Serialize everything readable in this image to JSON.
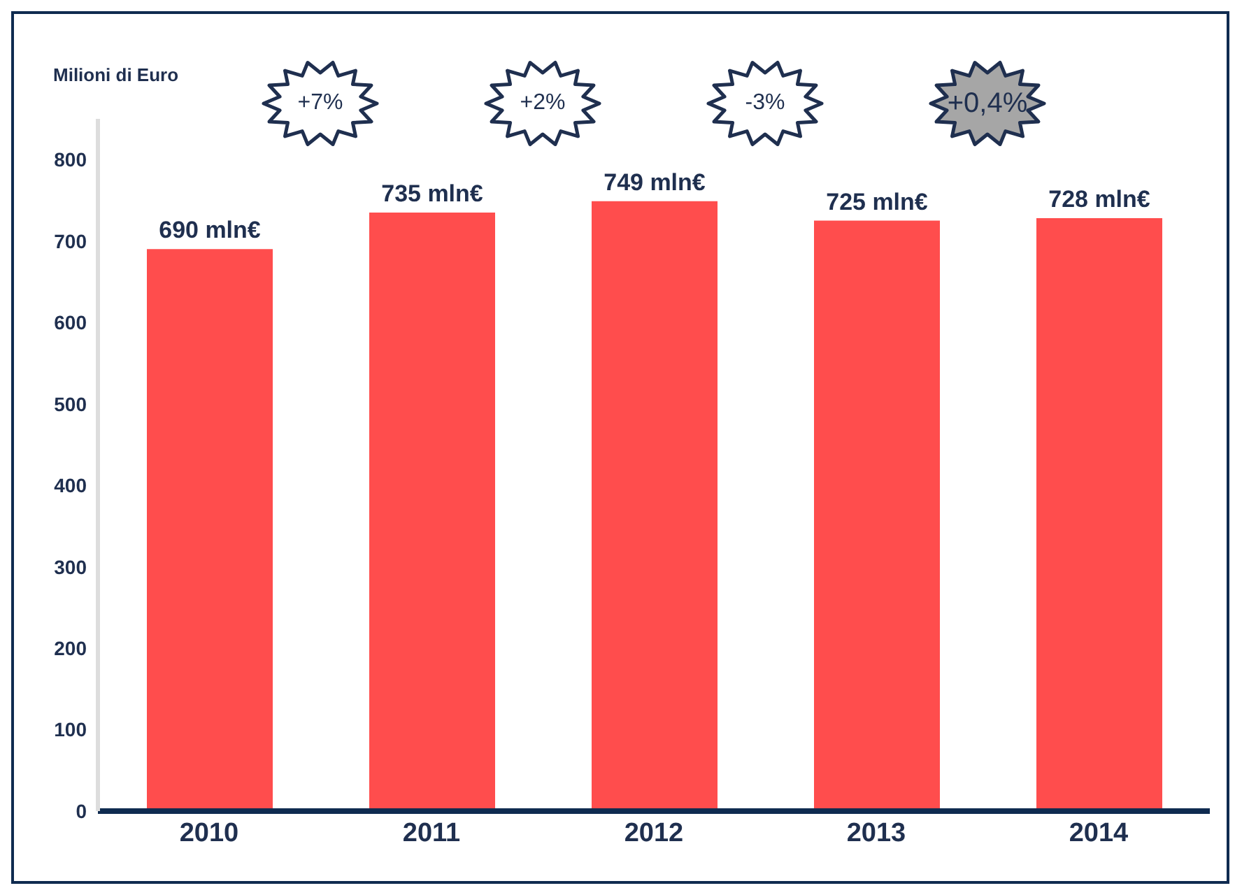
{
  "chart_data": {
    "type": "bar",
    "ylabel": "Milioni di Euro",
    "categories": [
      "2010",
      "2011",
      "2012",
      "2013",
      "2014"
    ],
    "values": [
      690,
      735,
      749,
      725,
      728
    ],
    "color": "#ff4d4d",
    "value_labels": [
      "690 mln€",
      "735 mln€",
      "749 mln€",
      "725 mln€",
      "728 mln€"
    ],
    "ylim": [
      0,
      850
    ],
    "yticks": [
      0,
      100,
      200,
      300,
      400,
      500,
      600,
      700,
      800
    ],
    "annotations": [
      "+7%",
      "+2%",
      "-3%",
      "+0,4%"
    ]
  }
}
